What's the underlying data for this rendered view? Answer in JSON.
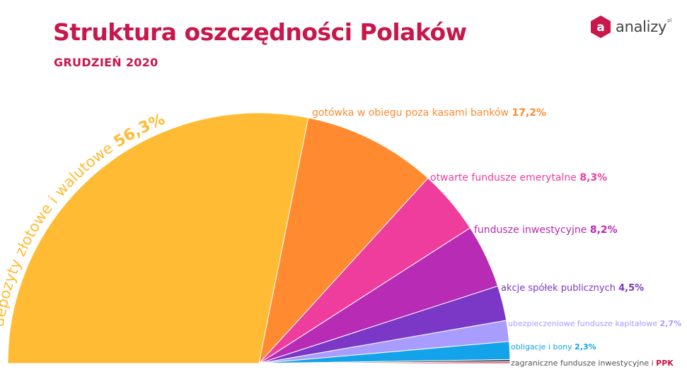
{
  "header": {
    "title": "Struktura oszczędności Polaków",
    "subtitle": "GRUDZIEŃ 2020"
  },
  "logo": {
    "icon": "analizy-logo-icon",
    "icon_letter": "a",
    "word": "analizy",
    "suffix": "pl"
  },
  "chart_data": {
    "type": "pie",
    "subtype": "half-pie",
    "title": "Struktura oszczędności Polaków",
    "subtitle": "GRUDZIEŃ 2020",
    "legend": "none (labels placed next to slices)",
    "slices": [
      {
        "label": "depozyty złotowe i walutowe",
        "value": 56.3,
        "display": "56,3%",
        "color": "#ffbb33"
      },
      {
        "label": "gotówka w obiegu poza kasami banków",
        "value": 17.2,
        "display": "17,2%",
        "color": "#ff8a30"
      },
      {
        "label": "otwarte fundusze emerytalne",
        "value": 8.3,
        "display": "8,3%",
        "color": "#ee3d9c"
      },
      {
        "label": "fundusze inwestycyjne",
        "value": 8.2,
        "display": "8,2%",
        "color": "#b82bb5"
      },
      {
        "label": "akcje spółek publicznych",
        "value": 4.5,
        "display": "4,5%",
        "color": "#7b38c7"
      },
      {
        "label": "ubezpieczeniowe fundusze kapitałowe",
        "value": 2.7,
        "display": "2,7%",
        "color": "#a99cff"
      },
      {
        "label": "obligacje i bony",
        "value": 2.3,
        "display": "2,3%",
        "color": "#12a3ea"
      },
      {
        "label": "zagraniczne fundusze inwestycyjne",
        "value": 0.3,
        "display": "",
        "color": "#555555"
      },
      {
        "label": "PPK",
        "value": 0.2,
        "display": "",
        "color": "#c8174b"
      }
    ]
  }
}
